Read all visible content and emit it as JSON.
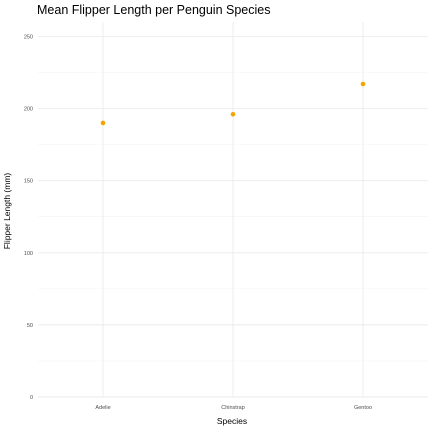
{
  "chart_data": {
    "type": "scatter",
    "title": "Mean Flipper Length per Penguin Species",
    "xlabel": "Species",
    "ylabel": "Flipper Length (mm)",
    "categories": [
      "Adelie",
      "Chinstrap",
      "Gentoo"
    ],
    "values": [
      190,
      196,
      217
    ],
    "ylim": [
      0,
      260
    ],
    "yticks": [
      0,
      50,
      100,
      150,
      200,
      250
    ],
    "point_color": "#f5a300",
    "grid": true,
    "legend": "none"
  }
}
